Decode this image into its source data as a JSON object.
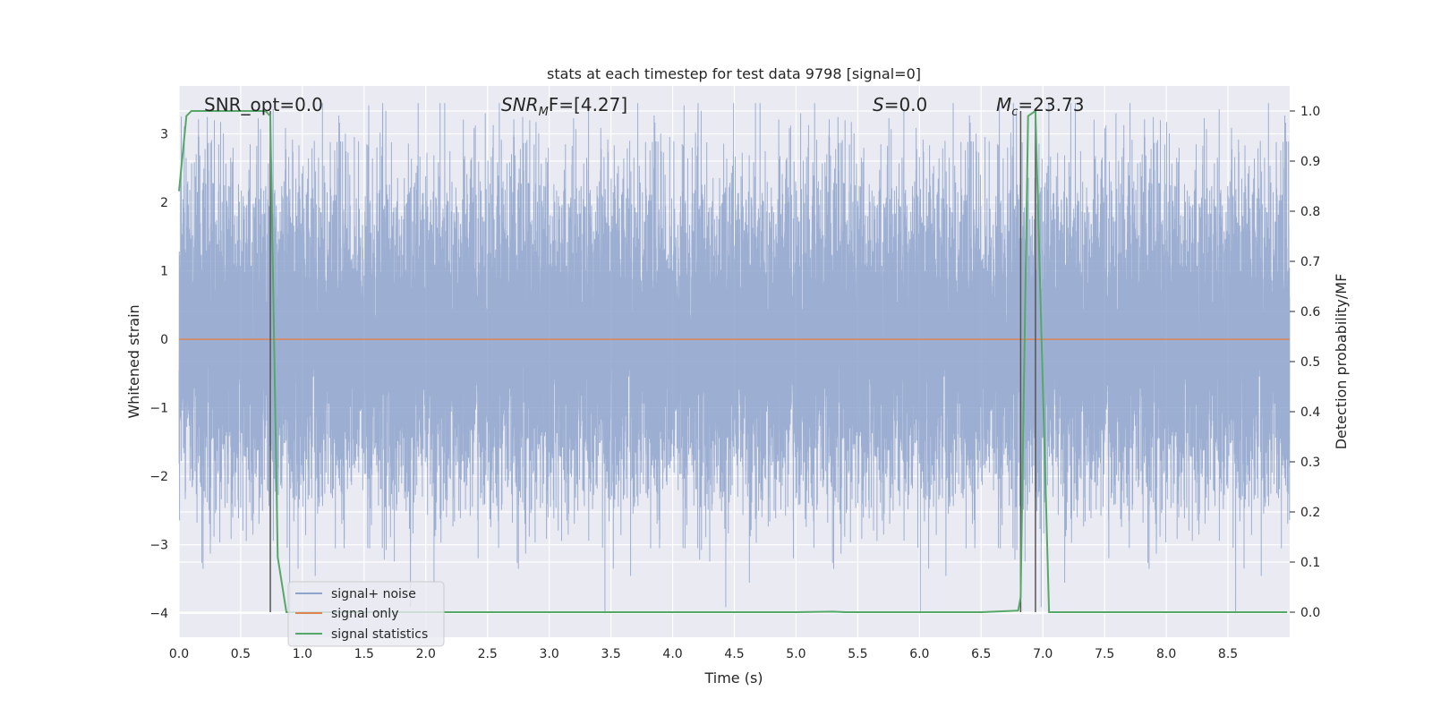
{
  "chart_data": {
    "type": "line",
    "title": "stats at each timestep for test data 9798 [signal=0]",
    "xlabel": "Time (s)",
    "ylabel_left": "Whitened strain",
    "ylabel_right": "Detection probability/MF",
    "xlim": [
      0.0,
      9.0
    ],
    "ylim_left": [
      -4.35,
      3.7
    ],
    "ylim_right": [
      -0.05,
      1.05
    ],
    "x_ticks": [
      0.0,
      0.5,
      1.0,
      1.5,
      2.0,
      2.5,
      3.0,
      3.5,
      4.0,
      4.5,
      5.0,
      5.5,
      6.0,
      6.5,
      7.0,
      7.5,
      8.0,
      8.5
    ],
    "x_tick_labels": [
      "0.0",
      "0.5",
      "1.0",
      "1.5",
      "2.0",
      "2.5",
      "3.0",
      "3.5",
      "4.0",
      "4.5",
      "5.0",
      "5.5",
      "6.0",
      "6.5",
      "7.0",
      "7.5",
      "8.0",
      "8.5"
    ],
    "y_left_ticks": [
      3,
      2,
      1,
      0,
      -1,
      -2,
      -3,
      -4
    ],
    "y_left_tick_labels": [
      "3",
      "2",
      "1",
      "0",
      "−1",
      "−2",
      "−3",
      "−4"
    ],
    "y_right_ticks": [
      1.0,
      0.9,
      0.8,
      0.7,
      0.6,
      0.5,
      0.4,
      0.3,
      0.2,
      0.1,
      0.0
    ],
    "y_right_tick_labels": [
      "1.0",
      "0.9",
      "0.8",
      "0.7",
      "0.6",
      "0.5",
      "0.4",
      "0.3",
      "0.2",
      "0.1",
      "0.0"
    ],
    "grid": true,
    "legend_position": "lower-left",
    "series": [
      {
        "name": "signal+ noise",
        "axis": "left",
        "color": "#8ea4cc",
        "description_kind": "noise",
        "amplitude_std": 1.0,
        "sample_rate_hz": 2048,
        "duration_s": 9.0
      },
      {
        "name": "signal only",
        "axis": "left",
        "color": "#dd8452",
        "x": [
          0.0,
          9.0
        ],
        "y": [
          0.0,
          0.0
        ]
      },
      {
        "name": "signal statistics",
        "axis": "right",
        "color": "#55a868",
        "x": [
          0.0,
          0.06,
          0.1,
          0.2,
          0.3,
          0.4,
          0.5,
          0.6,
          0.7,
          0.74,
          0.8,
          0.87,
          1.0,
          2.0,
          3.0,
          4.0,
          5.0,
          5.3,
          5.4,
          6.0,
          6.5,
          6.8,
          6.82,
          6.88,
          6.94,
          7.0,
          7.05,
          7.5,
          8.0,
          8.5,
          8.98
        ],
        "y": [
          0.84,
          0.99,
          1.0,
          1.0,
          1.0,
          1.0,
          1.0,
          1.0,
          1.0,
          0.99,
          0.11,
          0.0,
          0.0,
          0.0,
          0.0,
          0.0,
          0.0,
          0.001,
          0.0,
          0.0,
          0.0,
          0.003,
          0.03,
          0.99,
          1.0,
          0.45,
          0.0,
          0.0,
          0.0,
          0.0,
          0.0
        ]
      }
    ],
    "vertical_lines": [
      {
        "x": 0.74,
        "y_from": 0.0,
        "y_to": 1.0,
        "color": "#555555"
      },
      {
        "x": 6.82,
        "y_from": 0.0,
        "y_to": 1.0,
        "color": "#555555"
      },
      {
        "x": 6.94,
        "y_from": 0.0,
        "y_to": 1.0,
        "color": "#555555"
      }
    ],
    "annotations": [
      {
        "id": "snr-opt",
        "text": "SNR_opt=0.0",
        "x": 0.19
      },
      {
        "id": "snr-mf",
        "text_main": "SNR",
        "text_sub": "M",
        "text_rest": "F=[4.27]",
        "x": 2.6
      },
      {
        "id": "s-stat",
        "text_italic": "S",
        "text_rest": "=0.0",
        "x": 5.6
      },
      {
        "id": "mc",
        "text_italic": "M",
        "text_sub": "c",
        "text_rest": "=23.73",
        "x": 6.6
      }
    ]
  },
  "colors": {
    "plot_bg": "#eaeaf2",
    "grid": "#ffffff",
    "noise": "#8ea4cc",
    "signal": "#dd8452",
    "stat": "#55a868"
  }
}
